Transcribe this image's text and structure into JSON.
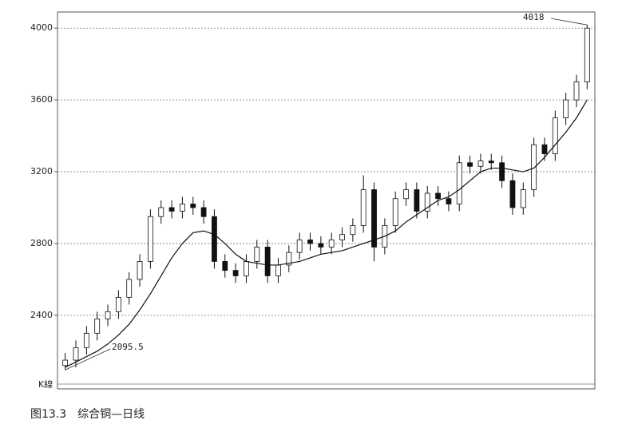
{
  "chart_data": {
    "type": "candlestick",
    "caption": "图13.3　综合铜—日线",
    "corner_label": "K線",
    "annotations": [
      "4018",
      "2095.5"
    ],
    "ylim": [
      1990,
      4090
    ],
    "yticks": [
      2400,
      2800,
      3200,
      3600,
      4000
    ],
    "grid": true,
    "color": "#111111",
    "open": [
      2120,
      2150,
      2220,
      2300,
      2380,
      2420,
      2500,
      2600,
      2700,
      2950,
      3000,
      2980,
      3020,
      3000,
      2950,
      2700,
      2650,
      2620,
      2700,
      2780,
      2620,
      2680,
      2750,
      2820,
      2800,
      2780,
      2820,
      2850,
      2900,
      3100,
      2780,
      2900,
      3050,
      3100,
      2980,
      3080,
      3050,
      3020,
      3250,
      3230,
      3260,
      3250,
      3150,
      3000,
      3100,
      3350,
      3300,
      3500,
      3600,
      3700
    ],
    "high": [
      2190,
      2260,
      2340,
      2420,
      2460,
      2540,
      2640,
      2740,
      2990,
      3040,
      3040,
      3060,
      3060,
      3040,
      2990,
      2740,
      2690,
      2740,
      2820,
      2820,
      2720,
      2790,
      2860,
      2860,
      2840,
      2860,
      2890,
      2940,
      3180,
      3140,
      2940,
      3090,
      3140,
      3140,
      3120,
      3120,
      3090,
      3290,
      3290,
      3300,
      3300,
      3290,
      3190,
      3140,
      3390,
      3390,
      3540,
      3640,
      3740,
      4018
    ],
    "low": [
      2095.5,
      2110,
      2180,
      2260,
      2340,
      2380,
      2460,
      2560,
      2660,
      2910,
      2940,
      2940,
      2960,
      2910,
      2660,
      2610,
      2580,
      2580,
      2660,
      2580,
      2580,
      2640,
      2710,
      2760,
      2740,
      2740,
      2780,
      2810,
      2860,
      2700,
      2740,
      2860,
      3010,
      2940,
      2940,
      3010,
      2980,
      2980,
      3190,
      3190,
      3210,
      3110,
      2960,
      2960,
      3060,
      3260,
      3260,
      3460,
      3560,
      3660
    ],
    "close": [
      2150,
      2220,
      2300,
      2380,
      2420,
      2500,
      2600,
      2700,
      2950,
      3000,
      2980,
      3020,
      3000,
      2950,
      2700,
      2650,
      2620,
      2700,
      2780,
      2620,
      2680,
      2750,
      2820,
      2800,
      2780,
      2820,
      2850,
      2900,
      3100,
      2780,
      2900,
      3050,
      3100,
      2980,
      3080,
      3050,
      3020,
      3250,
      3230,
      3260,
      3250,
      3150,
      3000,
      3100,
      3350,
      3300,
      3500,
      3600,
      3700,
      4000
    ],
    "ma": [
      2110,
      2140,
      2170,
      2200,
      2240,
      2290,
      2350,
      2430,
      2520,
      2620,
      2720,
      2800,
      2860,
      2870,
      2850,
      2800,
      2740,
      2700,
      2690,
      2680,
      2680,
      2690,
      2700,
      2720,
      2740,
      2750,
      2760,
      2780,
      2800,
      2820,
      2840,
      2870,
      2920,
      2960,
      3000,
      3040,
      3060,
      3100,
      3150,
      3200,
      3220,
      3220,
      3210,
      3200,
      3220,
      3280,
      3350,
      3420,
      3500,
      3600
    ]
  }
}
